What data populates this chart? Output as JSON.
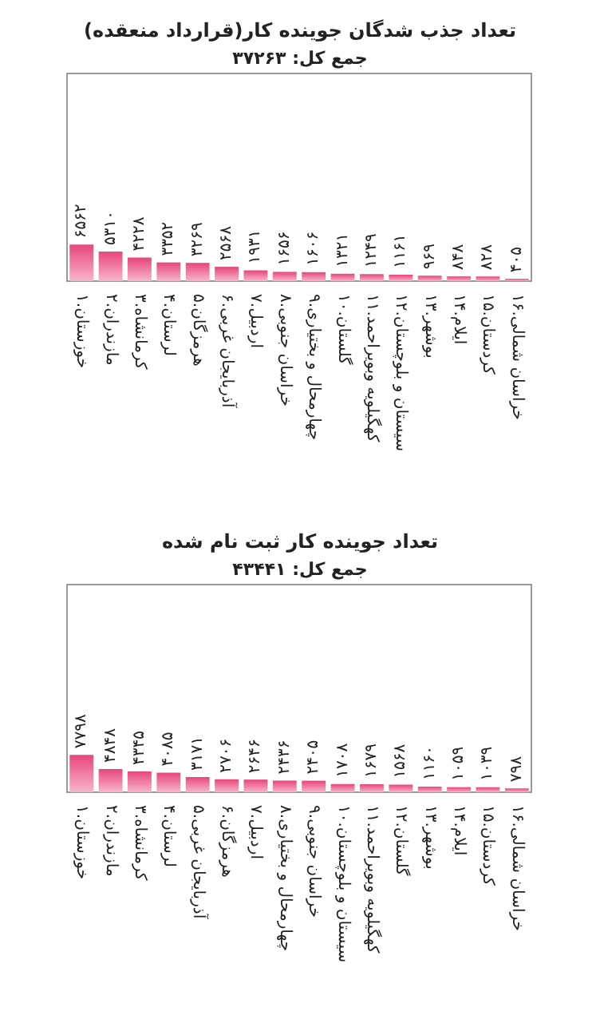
{
  "chart_data": [
    {
      "type": "bar",
      "title": "تعداد جذب شدگان جوینده کار(قرارداد منعقده)",
      "subtitle": "جمع کل: ۳۷۲۶۳",
      "color": "#e8457a",
      "categories": [
        "۱.خوزستان",
        "۲.مازندران",
        "۳.کرمانشاه",
        "۴.لرستان",
        "۵.هرمزگان",
        "۶.آذربایجان غربی",
        "۷.اردبیل",
        "۸.خراسان جنوبی",
        "۹.چهارمحال و بختیاری",
        "۱۰.گلستان",
        "۱۱.کهگیلویه وبویراحمد",
        "۱۲.سیستان و بلوچستان",
        "۱۳.بوشهر",
        "۱۴.ایلام",
        "۱۵.کردستان",
        "۱۶.خراسان شمالی"
      ],
      "values": [
        6562,
        5310,
        4228,
        3352,
        3269,
        2568,
        1931,
        1656,
        1606,
        1321,
        1249,
        1161,
        969,
        848,
        828,
        405
      ],
      "value_labels": [
        "۶۵۶۲",
        "۵۳۱۰",
        "۴۲۲۸",
        "۳۳۵۲",
        "۳۲۶۹",
        "۲۵۶۸",
        "۱۹۳۱",
        "۱۶۵۶",
        "۱۶۰۶",
        "۱۳۲۱",
        "۱۲۴۹",
        "۱۱۶۱",
        "۹۶۹",
        "۸۴۸",
        "۸۲۸",
        "۴۰۵"
      ]
    },
    {
      "type": "bar",
      "title": "تعداد جوینده کار ثبت نام شده",
      "subtitle": "جمع کل: ۴۳۴۴۱",
      "color": "#e8457a",
      "categories": [
        "۱.خوزستان",
        "۲.مازندران",
        "۳.کرمانشاه",
        "۴.لرستان",
        "۵.آذربایجان غربی",
        "۶.هرمزگان",
        "۷.اردبیل",
        "۸.چهارمحال و بختیاری",
        "۹.خراسان جنوبی",
        "۱۰.سیستان و بلوچستان",
        "۱۱.کهگیلویه وبویراحمد",
        "۱۲.گلستان",
        "۱۳.بوشهر",
        "۱۴.ایلام",
        "۱۵.کردستان",
        "۱۶.خراسان شمالی"
      ],
      "values": [
        7798,
        4848,
        4345,
        4085,
        3171,
        2706,
        2646,
        2436,
        2405,
        1708,
        1679,
        1568,
        1160,
        1059,
        1039,
        798
      ],
      "value_labels": [
        "۷۷۹۸",
        "۴۸۴۸",
        "۴۳۴۵",
        "۴۰۸۵",
        "۳۱۷۱",
        "۲۷۰۶",
        "۲۶۴۶",
        "۲۴۳۶",
        "۲۴۰۵",
        "۱۷۰۸",
        "۱۶۷۹",
        "۱۵۶۸",
        "۱۱۶۰",
        "۱۰۵۹",
        "۱۰۳۹",
        "۷۹۸"
      ]
    }
  ]
}
